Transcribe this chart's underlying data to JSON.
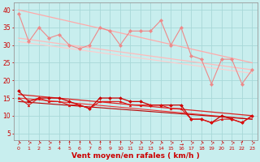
{
  "bg_color": "#c8eeee",
  "grid_color": "#a8d8d8",
  "xlabel": "Vent moyen/en rafales ( km/h )",
  "xlabel_color": "#cc0000",
  "tick_color": "#cc0000",
  "xlim": [
    -0.5,
    23.5
  ],
  "ylim": [
    3,
    42
  ],
  "yticks": [
    5,
    10,
    15,
    20,
    25,
    30,
    35,
    40
  ],
  "xticks": [
    0,
    1,
    2,
    3,
    4,
    5,
    6,
    7,
    8,
    9,
    10,
    11,
    12,
    13,
    14,
    15,
    16,
    17,
    18,
    19,
    20,
    21,
    22,
    23
  ],
  "series_rafales_jagged": {
    "color": "#ee8888",
    "linewidth": 0.8,
    "marker": "D",
    "markersize": 2.2,
    "values": [
      39,
      31,
      35,
      32,
      33,
      30,
      29,
      30,
      35,
      34,
      30,
      34,
      34,
      34,
      37,
      30,
      35,
      27,
      26,
      19,
      26,
      26,
      19,
      23
    ]
  },
  "series_rafales_trend1": {
    "color": "#ffaaaa",
    "linewidth": 0.9,
    "start": 40,
    "end": 25
  },
  "series_rafales_trend2": {
    "color": "#ffbbbb",
    "linewidth": 0.9,
    "start": 32,
    "end": 23
  },
  "series_rafales_trend3": {
    "color": "#ffcccc",
    "linewidth": 0.8,
    "start": 31,
    "end": 22
  },
  "series_moy_jagged": {
    "color": "#cc0000",
    "linewidth": 0.9,
    "marker": "D",
    "markersize": 2.0,
    "values": [
      17,
      14,
      15,
      15,
      15,
      14,
      13,
      12,
      15,
      15,
      15,
      14,
      14,
      13,
      13,
      13,
      13,
      9,
      9,
      8,
      10,
      9,
      8,
      10
    ]
  },
  "series_moy_jagged2": {
    "color": "#dd1111",
    "linewidth": 0.8,
    "marker": "^",
    "markersize": 2.0,
    "values": [
      15,
      13,
      15,
      14,
      14,
      13,
      13,
      12,
      14,
      14,
      14,
      13,
      13,
      13,
      13,
      12,
      12,
      9,
      9,
      8,
      9,
      9,
      8,
      10
    ]
  },
  "series_moy_trend1": {
    "color": "#dd2222",
    "linewidth": 0.9,
    "start": 16,
    "end": 10
  },
  "series_moy_trend2": {
    "color": "#ee3333",
    "linewidth": 0.8,
    "start": 15,
    "end": 9
  },
  "series_moy_trend3": {
    "color": "#bb0000",
    "linewidth": 0.8,
    "start": 14,
    "end": 9
  },
  "arrows": [
    "↗",
    "↗",
    "↗",
    "↗",
    "↑",
    "↑",
    "↑",
    "↖",
    "↑",
    "↑",
    "↑",
    "↗",
    "↗",
    "↗",
    "↗",
    "↗",
    "→",
    "↗",
    "↗",
    "↗",
    "↗",
    "↗",
    "↑",
    "↗"
  ]
}
